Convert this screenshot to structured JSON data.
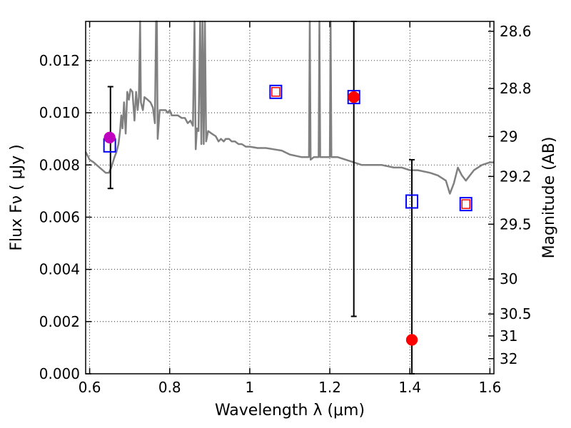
{
  "chart_data": {
    "type": "scatter",
    "title": "",
    "xlabel": "Wavelength  λ (μm)",
    "ylabel": "Flux  Fν  ( μJy )",
    "ylabel_right": "Magnitude (AB)",
    "xlim": [
      0.59,
      1.61
    ],
    "ylim": [
      0.0,
      0.0135
    ],
    "grid": true,
    "x_ticks": [
      0.6,
      0.8,
      1.0,
      1.2,
      1.4,
      1.6
    ],
    "x_tick_labels": [
      "0.6",
      "0.8",
      "1",
      "1.2",
      "1.4",
      "1.6"
    ],
    "y_ticks": [
      0.0,
      0.002,
      0.004,
      0.006,
      0.008,
      0.01,
      0.012
    ],
    "y_tick_labels": [
      "0.000",
      "0.002",
      "0.004",
      "0.006",
      "0.008",
      "0.010",
      "0.012"
    ],
    "right_axis_ticks": [
      {
        "flux": 0.01312,
        "label": "28.6"
      },
      {
        "flux": 0.01093,
        "label": "28.8"
      },
      {
        "flux": 0.00909,
        "label": "29"
      },
      {
        "flux": 0.00756,
        "label": "29.2"
      },
      {
        "flux": 0.00573,
        "label": "29.5"
      },
      {
        "flux": 0.00363,
        "label": "30"
      },
      {
        "flux": 0.00229,
        "label": "30.5"
      },
      {
        "flux": 0.00145,
        "label": "31"
      },
      {
        "flux": 0.00058,
        "label": "32"
      }
    ],
    "model_spectrum": {
      "color": "#808080",
      "points": [
        [
          0.59,
          0.0085
        ],
        [
          0.6,
          0.0082
        ],
        [
          0.61,
          0.0081
        ],
        [
          0.625,
          0.0079
        ],
        [
          0.64,
          0.0077
        ],
        [
          0.648,
          0.0077
        ],
        [
          0.654,
          0.0079
        ],
        [
          0.658,
          0.0081
        ],
        [
          0.662,
          0.0083
        ],
        [
          0.667,
          0.0085
        ],
        [
          0.672,
          0.0088
        ],
        [
          0.676,
          0.0093
        ],
        [
          0.679,
          0.0099
        ],
        [
          0.682,
          0.0094
        ],
        [
          0.686,
          0.0104
        ],
        [
          0.69,
          0.0092
        ],
        [
          0.694,
          0.0108
        ],
        [
          0.698,
          0.0105
        ],
        [
          0.702,
          0.0109
        ],
        [
          0.707,
          0.0108
        ],
        [
          0.712,
          0.0097
        ],
        [
          0.716,
          0.0108
        ],
        [
          0.72,
          0.0101
        ],
        [
          0.723,
          0.0106
        ],
        [
          0.726,
          0.0135
        ],
        [
          0.728,
          0.0104
        ],
        [
          0.733,
          0.0101
        ],
        [
          0.737,
          0.0106
        ],
        [
          0.745,
          0.0105
        ],
        [
          0.752,
          0.0104
        ],
        [
          0.758,
          0.0102
        ],
        [
          0.763,
          0.0096
        ],
        [
          0.766,
          0.0135
        ],
        [
          0.768,
          0.0135
        ],
        [
          0.77,
          0.009
        ],
        [
          0.775,
          0.0101
        ],
        [
          0.782,
          0.0101
        ],
        [
          0.79,
          0.0101
        ],
        [
          0.795,
          0.01
        ],
        [
          0.8,
          0.0101
        ],
        [
          0.805,
          0.0099
        ],
        [
          0.812,
          0.0099
        ],
        [
          0.82,
          0.0099
        ],
        [
          0.83,
          0.0098
        ],
        [
          0.838,
          0.0098
        ],
        [
          0.845,
          0.0096
        ],
        [
          0.852,
          0.0097
        ],
        [
          0.858,
          0.0095
        ],
        [
          0.862,
          0.0135
        ],
        [
          0.865,
          0.0086
        ],
        [
          0.868,
          0.0094
        ],
        [
          0.872,
          0.0093
        ],
        [
          0.876,
          0.0135
        ],
        [
          0.879,
          0.0088
        ],
        [
          0.882,
          0.0135
        ],
        [
          0.885,
          0.0088
        ],
        [
          0.888,
          0.0135
        ],
        [
          0.891,
          0.0089
        ],
        [
          0.896,
          0.0093
        ],
        [
          0.905,
          0.0092
        ],
        [
          0.915,
          0.0091
        ],
        [
          0.922,
          0.0089
        ],
        [
          0.928,
          0.009
        ],
        [
          0.935,
          0.0089
        ],
        [
          0.94,
          0.009
        ],
        [
          0.948,
          0.009
        ],
        [
          0.955,
          0.0089
        ],
        [
          0.963,
          0.0089
        ],
        [
          0.972,
          0.0088
        ],
        [
          0.98,
          0.0088
        ],
        [
          0.99,
          0.0087
        ],
        [
          1.0,
          0.0087
        ],
        [
          1.02,
          0.00865
        ],
        [
          1.04,
          0.00865
        ],
        [
          1.06,
          0.0086
        ],
        [
          1.08,
          0.00855
        ],
        [
          1.1,
          0.0084
        ],
        [
          1.13,
          0.0083
        ],
        [
          1.148,
          0.0083
        ],
        [
          1.15,
          0.0135
        ],
        [
          1.152,
          0.0082
        ],
        [
          1.16,
          0.0083
        ],
        [
          1.172,
          0.0083
        ],
        [
          1.174,
          0.0135
        ],
        [
          1.176,
          0.0083
        ],
        [
          1.19,
          0.0083
        ],
        [
          1.2,
          0.0083
        ],
        [
          1.202,
          0.0135
        ],
        [
          1.204,
          0.0083
        ],
        [
          1.22,
          0.0083
        ],
        [
          1.24,
          0.0082
        ],
        [
          1.26,
          0.0081
        ],
        [
          1.28,
          0.008
        ],
        [
          1.3,
          0.008
        ],
        [
          1.33,
          0.008
        ],
        [
          1.36,
          0.0079
        ],
        [
          1.38,
          0.0079
        ],
        [
          1.4,
          0.0078
        ],
        [
          1.42,
          0.0078
        ],
        [
          1.45,
          0.0077
        ],
        [
          1.47,
          0.0076
        ],
        [
          1.49,
          0.0074
        ],
        [
          1.5,
          0.0069
        ],
        [
          1.51,
          0.0073
        ],
        [
          1.52,
          0.0079
        ],
        [
          1.53,
          0.0076
        ],
        [
          1.54,
          0.0074
        ],
        [
          1.56,
          0.0078
        ],
        [
          1.58,
          0.008
        ],
        [
          1.6,
          0.0081
        ],
        [
          1.61,
          0.0081
        ]
      ]
    },
    "observed_points": [
      {
        "x": 0.65,
        "y": 0.00905,
        "color": "#bf00bf"
      },
      {
        "x": 1.26,
        "y": 0.0106,
        "color": "#ff0000"
      },
      {
        "x": 1.405,
        "y": 0.0013,
        "color": "#ff0000"
      }
    ],
    "error_bars": [
      {
        "x": 0.652,
        "low": 0.0071,
        "high": 0.011
      },
      {
        "x": 1.26,
        "low": 0.0022,
        "high": 0.0135
      },
      {
        "x": 1.405,
        "low": 0.0,
        "high": 0.0082
      }
    ],
    "blue_squares": [
      {
        "x": 0.65,
        "y": 0.00875
      },
      {
        "x": 1.065,
        "y": 0.0108
      },
      {
        "x": 1.26,
        "y": 0.0106
      },
      {
        "x": 1.405,
        "y": 0.0066
      },
      {
        "x": 1.54,
        "y": 0.0065
      }
    ],
    "red_squares": [
      {
        "x": 1.065,
        "y": 0.0108
      },
      {
        "x": 1.54,
        "y": 0.0065
      }
    ],
    "colors": {
      "blue": "#0000ff",
      "red": "#ff0000",
      "spectrum": "#808080"
    }
  }
}
